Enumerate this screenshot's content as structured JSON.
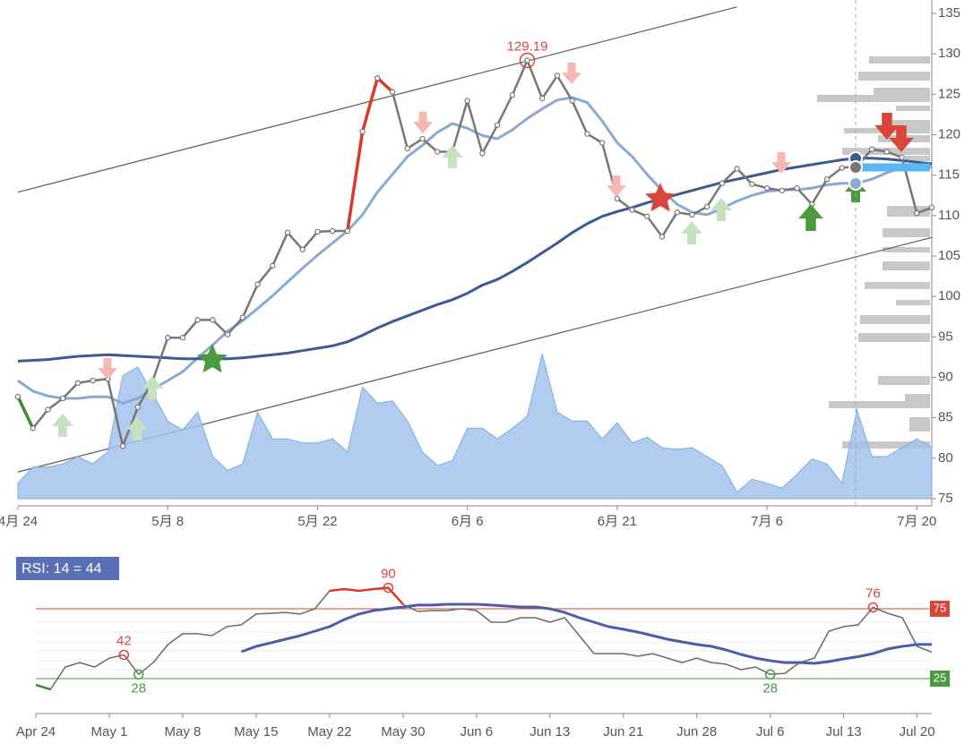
{
  "chart_data": [
    {
      "type": "line",
      "categories": [
        "4月 24",
        null,
        null,
        null,
        null,
        null,
        null,
        null,
        null,
        null,
        "5月 8",
        null,
        null,
        null,
        null,
        null,
        null,
        null,
        null,
        null,
        "5月 22",
        null,
        null,
        null,
        null,
        null,
        null,
        null,
        null,
        null,
        "6月 6",
        null,
        null,
        null,
        null,
        null,
        null,
        null,
        null,
        null,
        "6月 21",
        null,
        null,
        null,
        null,
        null,
        null,
        null,
        null,
        null,
        "7月 6",
        null,
        null,
        null,
        null,
        null,
        null,
        null,
        null,
        null,
        "7月 20",
        null
      ],
      "ylim": [
        75,
        135
      ],
      "yticks": [
        75,
        80,
        85,
        90,
        95,
        100,
        105,
        110,
        115,
        120,
        125,
        130,
        135
      ],
      "series": [
        {
          "color": "#a3c3eb",
          "area": true,
          "values": [
            76.9,
            78.9,
            78.9,
            79.3,
            80.2,
            79.3,
            80.8,
            90.2,
            91.3,
            88.0,
            84.6,
            83.5,
            85.7,
            80.2,
            78.5,
            79.3,
            85.7,
            82.4,
            82.4,
            81.9,
            81.9,
            82.4,
            80.8,
            88.8,
            86.8,
            87.1,
            84.6,
            80.8,
            79.1,
            79.7,
            83.7,
            83.7,
            82.4,
            83.7,
            85.2,
            92.9,
            85.7,
            84.6,
            84.6,
            82.4,
            84.4,
            81.9,
            82.6,
            81.3,
            81.1,
            81.3,
            80.2,
            79.1,
            75.8,
            77.4,
            76.9,
            76.3,
            78.0,
            79.9,
            79.3,
            76.9,
            86.0,
            80.2,
            80.2,
            81.3,
            82.4,
            81.3
          ]
        },
        {
          "color": "#8aaad4",
          "width": 3,
          "values": [
            89.6,
            88.3,
            87.7,
            87.4,
            87.4,
            87.6,
            87.6,
            86.8,
            87.4,
            88.5,
            89.6,
            90.7,
            92.4,
            94.0,
            95.7,
            97.0,
            98.5,
            100.1,
            101.8,
            103.5,
            105.1,
            106.6,
            108.1,
            110.1,
            112.9,
            115.1,
            117.3,
            118.7,
            120.3,
            121.4,
            120.8,
            119.9,
            119.5,
            120.6,
            122.0,
            123.2,
            124.3,
            124.6,
            124.0,
            121.7,
            119.0,
            117.3,
            115.1,
            113.1,
            111.4,
            110.4,
            110.1,
            110.9,
            111.8,
            112.5,
            113.0,
            113.2,
            113.2,
            113.4,
            113.8,
            114.0,
            114.0,
            114.5,
            115.3,
            115.9,
            116.0,
            116.0
          ]
        },
        {
          "color": "#3d5a92",
          "width": 3,
          "values": [
            92.0,
            92.1,
            92.2,
            92.4,
            92.6,
            92.7,
            92.8,
            92.7,
            92.6,
            92.5,
            92.4,
            92.3,
            92.3,
            92.3,
            92.3,
            92.4,
            92.6,
            92.8,
            93.0,
            93.3,
            93.6,
            93.9,
            94.4,
            95.2,
            96.1,
            96.9,
            97.6,
            98.3,
            99.0,
            99.6,
            100.4,
            101.4,
            102.1,
            103.1,
            104.2,
            105.4,
            106.6,
            107.9,
            109.0,
            109.9,
            110.5,
            111.0,
            111.6,
            112.1,
            112.6,
            113.1,
            113.6,
            114.1,
            114.5,
            114.9,
            115.3,
            115.7,
            116.0,
            116.3,
            116.6,
            116.9,
            117.1,
            117.1,
            117.0,
            116.8,
            116.6,
            116.4
          ]
        },
        {
          "color": "#777777",
          "width": 2.5,
          "markers": true,
          "segments": [
            {
              "from": 0,
              "to": 1,
              "color": "#3a8a2e"
            },
            {
              "from": 22,
              "to": 25,
              "color": "#d93a2b"
            }
          ],
          "values": [
            87.6,
            83.7,
            86.0,
            87.4,
            89.3,
            89.6,
            89.8,
            81.5,
            86.3,
            89.6,
            94.9,
            94.9,
            97.1,
            97.1,
            95.3,
            97.4,
            101.5,
            103.8,
            107.9,
            105.8,
            108.0,
            108.1,
            108.1,
            120.4,
            127.0,
            125.3,
            118.3,
            119.5,
            117.9,
            117.9,
            124.2,
            117.7,
            121.2,
            124.9,
            129.19,
            124.5,
            127.3,
            124.2,
            120.1,
            119.0,
            112.1,
            110.7,
            109.9,
            107.4,
            110.4,
            110.1,
            111.1,
            114.0,
            115.8,
            113.9,
            113.4,
            113.1,
            113.4,
            111.4,
            114.5,
            115.9,
            116.1,
            118.2,
            117.9,
            117.2,
            110.3,
            111.0
          ]
        }
      ],
      "trendlines": [
        {
          "color": "#666666",
          "x": [
            0,
            48
          ],
          "values": [
            112.9,
            135.8
          ]
        },
        {
          "color": "#666666",
          "x": [
            0,
            61
          ],
          "values": [
            78.3,
            107.3
          ]
        }
      ],
      "annotations": [
        {
          "series": 3,
          "index": 34,
          "color": "#d9453b",
          "position": "above"
        }
      ]
    },
    {
      "type": "line",
      "title": "RSI: 14 = 44",
      "categories": [
        "Apr 24",
        null,
        null,
        null,
        null,
        "May 1",
        null,
        null,
        null,
        null,
        "May 8",
        null,
        null,
        null,
        null,
        "May 15",
        null,
        null,
        null,
        null,
        "May 22",
        null,
        null,
        null,
        null,
        "May 30",
        null,
        null,
        null,
        null,
        "Jun 6",
        null,
        null,
        null,
        null,
        "Jun 13",
        null,
        null,
        null,
        null,
        "Jun 21",
        null,
        null,
        null,
        null,
        "Jun 28",
        null,
        null,
        null,
        null,
        "Jul 6",
        null,
        null,
        null,
        null,
        "Jul 13",
        null,
        null,
        null,
        null,
        "Jul 20",
        null
      ],
      "ylim": [
        0,
        100
      ],
      "hlines": [
        {
          "value": 75,
          "color": "#d9453b"
        },
        {
          "value": 25,
          "color": "#4a9a3f"
        }
      ],
      "series": [
        {
          "color": "#6b6b6b",
          "width": 1.5,
          "segments": [
            {
              "from": 0,
              "to": 1,
              "color": "#3a8a2e"
            },
            {
              "from": 20,
              "to": 25,
              "color": "#d93a2b"
            }
          ],
          "values": [
            20.5,
            17.3,
            33.3,
            36.5,
            33.3,
            39.7,
            42,
            28,
            36.5,
            49.4,
            57.1,
            57.1,
            55.8,
            62.2,
            63.5,
            71.2,
            71.8,
            72.4,
            71.2,
            75.0,
            87.8,
            89.1,
            87.8,
            89.1,
            90,
            78.2,
            73.1,
            73.7,
            73.7,
            75.0,
            73.7,
            65.4,
            65.4,
            68.6,
            68.6,
            65.4,
            68.6,
            55.8,
            42.9,
            42.9,
            42.9,
            41.0,
            42.9,
            39.7,
            36.5,
            39.7,
            36.5,
            35.3,
            31.4,
            33.3,
            28,
            28.8,
            36.5,
            39.7,
            59.0,
            62.2,
            63.5,
            76,
            71.8,
            68.6,
            48.1,
            44
          ]
        },
        {
          "color": "#4a5fa8",
          "width": 3,
          "values": [
            null,
            null,
            null,
            null,
            null,
            null,
            null,
            null,
            null,
            null,
            null,
            null,
            null,
            null,
            44.2,
            48.1,
            50.6,
            53.2,
            55.8,
            59.0,
            62.2,
            67.3,
            71.2,
            73.7,
            75.0,
            76.3,
            77.6,
            77.6,
            78.2,
            78.2,
            78.2,
            77.6,
            76.9,
            76.3,
            76.3,
            75.0,
            72.4,
            68.6,
            65.4,
            62.2,
            60.3,
            58.3,
            55.8,
            53.2,
            51.3,
            49.4,
            48.1,
            45.5,
            42.3,
            39.7,
            37.8,
            36.5,
            36.5,
            35.9,
            37.2,
            39.1,
            40.7,
            42.9,
            46.2,
            48.1,
            49.4,
            49.4
          ]
        }
      ],
      "annotations": [
        {
          "series": 0,
          "index": 6,
          "color": "#d9453b",
          "position": "above"
        },
        {
          "series": 0,
          "index": 7,
          "color": "#4a9a3f",
          "position": "below"
        },
        {
          "series": 0,
          "index": 24,
          "color": "#d9453b",
          "position": "above"
        },
        {
          "series": 0,
          "index": 50,
          "color": "#4a9a3f",
          "position": "below"
        },
        {
          "series": 0,
          "index": 57,
          "color": "#d9453b",
          "position": "above"
        }
      ]
    }
  ]
}
